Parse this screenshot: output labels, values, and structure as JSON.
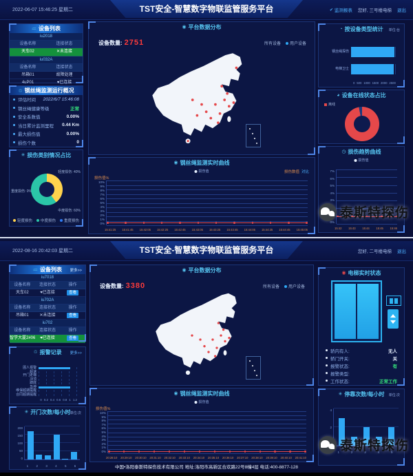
{
  "colors": {
    "accent_blue": "#2fa8f5",
    "alert_red": "#e5484a",
    "ok_green": "#35e57d",
    "panel_border": "#1b3578"
  },
  "watermark": {
    "brand": "泰斯特探伤"
  },
  "screen_a": {
    "header": {
      "datetime": "2022-06-07 15:46:25 星期二",
      "title": "TST安全-智慧数字物联监管服务平台",
      "nav": {
        "report": "监测报表",
        "greeting": "您好, 三号楼电梯",
        "logout": "退出"
      }
    },
    "device_list": {
      "title": "设备列表",
      "groups": [
        {
          "code": "iu2018",
          "col_name": "设备名称",
          "col_state": "连接状态",
          "rows": [
            {
              "name": "天车02",
              "state": "✕未连接"
            }
          ]
        },
        {
          "code": "iu032A",
          "col_name": "设备名称",
          "col_state": "连接状态",
          "rows": [
            {
              "name": "吊箱01",
              "state": "故障处理"
            },
            {
              "name": "4uP01",
              "state": "♥已连接"
            }
          ]
        }
      ]
    },
    "overview": {
      "title": "钢丝绳监测运行概况",
      "rows": [
        {
          "label": "评估时间",
          "value": "2022/6/7 15:46:08"
        },
        {
          "label": "钢丝绳健康等级",
          "value": "正常"
        },
        {
          "label": "安全系数值",
          "value": "0.00%"
        },
        {
          "label": "当日累计监测里程",
          "value": "0.44 Km"
        },
        {
          "label": "最大损伤值",
          "value": "0.00%"
        },
        {
          "label": "损伤个数",
          "value": "0"
        }
      ]
    },
    "damage_panel": {
      "title": "损伤类别情况占比",
      "callout_left": "重度损伤: 0%",
      "callout_top": "轻度损伤: 40%",
      "callout_bottom": "中度损伤: 60%",
      "legend": [
        "轻度损伤",
        "中度损伤",
        "重度损伤"
      ]
    },
    "map_panel": {
      "title": "平台数据分布",
      "count_label": "设备数量:",
      "count": "2751",
      "toggle_all": "所有设备",
      "toggle_user": "用户设备"
    },
    "realtime_panel": {
      "title": "钢丝绳监测实时曲线",
      "legend": "损伤值",
      "right_label": "损伤数值",
      "right_link": "对比"
    },
    "category_panel": {
      "title": "按设备类型统计",
      "unit": "单位:台"
    },
    "online_panel": {
      "title": "设备在线状态占比",
      "legend_offline": "离线"
    },
    "trend_panel": {
      "title": "损伤趋势曲线",
      "legend": "损伤值"
    }
  },
  "screen_b": {
    "header": {
      "datetime": "2022-08-16 20:42:03 星期二",
      "title": "TST安全-智慧数字物联监管服务平台",
      "nav": {
        "greeting": "您好, 二号楼电梯",
        "logout": "退出"
      }
    },
    "device_list": {
      "title": "设备列表",
      "more": "更多>>",
      "groups": [
        {
          "code": "iu7018",
          "cols": [
            "设备名称",
            "连接状态",
            "操作"
          ],
          "rows": [
            {
              "name": "天车02",
              "state": "♥已连接",
              "op": "查看"
            }
          ]
        },
        {
          "code": "iu702A",
          "cols": [
            "设备名称",
            "连接状态",
            "操作"
          ],
          "rows": [
            {
              "name": "吊箱01",
              "state": "✕未连接",
              "op": "查看"
            }
          ]
        },
        {
          "code": "iu702",
          "cols": [
            "设备名称",
            "连接状态",
            "操作"
          ],
          "rows": [
            {
              "name": "智学大厦2#06电梯",
              "state": "♥已连接",
              "op": "查看"
            }
          ]
        }
      ]
    },
    "alarm_panel": {
      "title": "报警记录",
      "more": "更多>>"
    },
    "trips_panel": {
      "title": "开门次数/每小时",
      "unit": "单位:次"
    },
    "map_panel": {
      "title": "平台数据分布",
      "count_label": "设备数量:",
      "count": "3380",
      "toggle_all": "所有设备",
      "toggle_user": "用户设备"
    },
    "realtime_panel": {
      "title": "钢丝绳监测实时曲线",
      "legend": "损伤值"
    },
    "elevator_panel": {
      "title": "电梯实时状态",
      "rows": [
        {
          "label": "轿内有人:",
          "value": "无人"
        },
        {
          "label": "轿门开关:",
          "value": "关"
        },
        {
          "label": "报警状态:",
          "value": "有"
        },
        {
          "label": "报警类型:",
          "value": ""
        },
        {
          "label": "工作状态:",
          "value": "正常工作"
        }
      ]
    },
    "stops_panel": {
      "title": "停靠次数/每小时",
      "unit": "单位:次"
    },
    "footer": "中国•洛阳泰斯特探伤技术有限公司  地址:洛阳市高新区合欢路22号8幢4层  电话:400-8877-128"
  },
  "chart_data": [
    {
      "id": "a-category-bar",
      "type": "bar",
      "orient": "h",
      "title": "按设备类型统计",
      "unit": "单位:台",
      "categories": [
        "钢丝绳探伤",
        "电梯卫士"
      ],
      "values": [
        2480,
        2430
      ],
      "xticks": [
        "0",
        "500",
        "1000",
        "1500",
        "2000",
        "2500"
      ],
      "xmax": 2500,
      "bar_color": "#2fa8f5"
    },
    {
      "id": "a-online-donut",
      "type": "pie",
      "title": "设备在线状态占比",
      "labels": [
        "离线",
        "在线"
      ],
      "values": [
        97,
        3
      ],
      "colors": [
        "#e5484a",
        "#1c3a7c"
      ]
    },
    {
      "id": "a-damage-donut",
      "type": "pie",
      "title": "损伤类别情况占比",
      "labels": [
        "轻度损伤",
        "中度损伤",
        "重度损伤"
      ],
      "values": [
        40,
        60,
        0
      ],
      "colors": [
        "#ffd34d",
        "#2bc6a8",
        "#2f7bf5"
      ]
    },
    {
      "id": "a-realtime-line",
      "type": "line",
      "title": "钢丝绳监测实时曲线",
      "ylabel": "损伤值%",
      "yticks": [
        "10%",
        "9%",
        "8%",
        "7%",
        "6%",
        "5%",
        "4%",
        "3%",
        "2%",
        "1%",
        "0%"
      ],
      "x": [
        "15:41:25",
        "15:41:45",
        "15:42:05",
        "15:42:25",
        "15:42:45",
        "15:43:05",
        "15:43:25",
        "15:43:45",
        "15:44:05",
        "15:44:25",
        "15:44:45",
        "15:45:05"
      ],
      "series": [
        {
          "name": "损伤值",
          "values": [
            0,
            0,
            0,
            0,
            0,
            0,
            0,
            0,
            0,
            0,
            0,
            0
          ]
        }
      ],
      "line_pos": 0.05
    },
    {
      "id": "a-trend-line",
      "type": "line",
      "title": "损伤趋势曲线",
      "yticks": [
        "7%",
        "6%",
        "5%",
        "4%",
        "3%",
        "2%",
        "1%",
        "0%"
      ],
      "x": [
        "15:42",
        "15:43",
        "15:44",
        "15:45",
        "15:46"
      ],
      "series": [
        {
          "name": "损伤值",
          "values": [
            0,
            0,
            0,
            0,
            0
          ]
        }
      ],
      "line_pos": 0.13
    },
    {
      "id": "b-alarm-bar",
      "type": "bar",
      "orient": "h",
      "title": "报警记录",
      "categories": [
        "困人报警",
        "超速",
        "开门走梯",
        "冲顶",
        "蹲底",
        "急停",
        "维保超期提醒",
        "合同超期提醒"
      ],
      "values": [
        1,
        0,
        0,
        0,
        0,
        1,
        0,
        0
      ],
      "xticks": [
        "0",
        "0.2",
        "0.4",
        "0.6",
        "0.8",
        "1",
        "1.2"
      ],
      "xmax": 1.2,
      "bar_color": "#2fa8f5"
    },
    {
      "id": "b-trips-bar",
      "type": "bar",
      "title": "开门次数/每小时",
      "categories": [
        "1",
        "2",
        "3",
        "4",
        "5",
        "6"
      ],
      "values": [
        170,
        30,
        25,
        150,
        5,
        45
      ],
      "yticks": [
        "0",
        "50",
        "100",
        "150",
        "200"
      ],
      "ymax": 200,
      "bar_color": "#2fa8f5"
    },
    {
      "id": "b-realtime-line",
      "type": "line",
      "title": "钢丝绳监测实时曲线",
      "ylabel": "损伤值%",
      "yticks": [
        "10%",
        "9%",
        "8%",
        "7%",
        "6%",
        "5%",
        "4%",
        "3%",
        "2%",
        "1%",
        "0%"
      ],
      "x": [
        "20:28:10",
        "20:29:10",
        "20:30:10",
        "20:31:10",
        "20:32:10",
        "20:33:10",
        "20:34:10",
        "20:35:10",
        "20:36:10",
        "20:37:10",
        "20:38:10",
        "20:39:10",
        "20:40:10",
        "20:41:10"
      ],
      "series": [
        {
          "name": "损伤值",
          "values": [
            0,
            0,
            0,
            0,
            0,
            0,
            0,
            0,
            0,
            0,
            0,
            0,
            0,
            0
          ]
        }
      ],
      "line_pos": 0.03
    },
    {
      "id": "b-stops-bar",
      "type": "bar",
      "title": "停靠次数/每小时",
      "categories": [
        "1",
        "2",
        "3",
        "4",
        "5"
      ],
      "values": [
        3,
        1,
        2,
        1,
        2
      ],
      "yticks": [
        "0",
        "2",
        "4"
      ],
      "ymax": 4,
      "bar_color": "#2fa8f5"
    }
  ]
}
